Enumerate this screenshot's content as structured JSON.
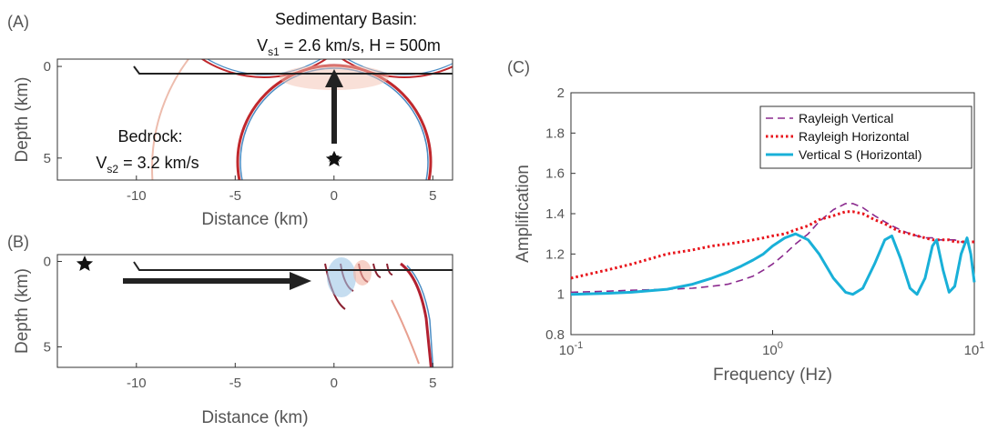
{
  "chart_data": [
    {
      "type": "image",
      "panel_label": "(A)",
      "xlabel": "Distance (km)",
      "ylabel": "Depth (km)",
      "xlim": [
        -14,
        6
      ],
      "ylim": [
        -0.4,
        6.2
      ],
      "y_inverted": true,
      "xticks": [
        -10,
        -5,
        0,
        5
      ],
      "yticks": [
        0,
        5
      ],
      "annotations": {
        "basin_title": "Sedimentary Basin:",
        "basin_v": "V",
        "basin_sub": "s1",
        "basin_rest": " = 2.6 km/s, H = 500m",
        "bedrock_title": "Bedrock:",
        "bedrock_v": "V",
        "bedrock_sub": "s2",
        "bedrock_rest": " = 3.2 km/s"
      }
    },
    {
      "type": "image",
      "panel_label": "(B)",
      "xlabel": "Distance (km)",
      "ylabel": "Depth (km)",
      "xlim": [
        -14,
        6
      ],
      "ylim": [
        -0.4,
        6.2
      ],
      "y_inverted": true,
      "xticks": [
        -10,
        -5,
        0,
        5
      ],
      "yticks": [
        0,
        5
      ]
    },
    {
      "type": "line",
      "panel_label": "(C)",
      "xlabel": "Frequency (Hz)",
      "ylabel": "Amplification",
      "xscale": "log",
      "xlim": [
        0.1,
        10
      ],
      "ylim": [
        0.8,
        2
      ],
      "xticks": [
        {
          "value": 0.1,
          "label": "10",
          "exponent": "-1"
        },
        {
          "value": 1,
          "label": "10",
          "exponent": "0"
        },
        {
          "value": 10,
          "label": "10",
          "exponent": "1"
        }
      ],
      "yticks": [
        0.8,
        1,
        1.2,
        1.4,
        1.6,
        1.8,
        2
      ],
      "legend": "upper right",
      "x": [
        0.1,
        0.15,
        0.2,
        0.3,
        0.4,
        0.5,
        0.6,
        0.7,
        0.8,
        0.9,
        1.0,
        1.15,
        1.3,
        1.5,
        1.7,
        2.0,
        2.3,
        2.5,
        2.8,
        3.2,
        3.6,
        3.9,
        4.3,
        4.8,
        5.2,
        5.7,
        6.2,
        6.5,
        7.0,
        7.5,
        8.0,
        8.6,
        9.2,
        9.6,
        10
      ],
      "series": [
        {
          "name": "Rayleigh Vertical",
          "color": "#8b2a8e",
          "linestyle": "dashed",
          "values": [
            1.01,
            1.015,
            1.02,
            1.025,
            1.03,
            1.04,
            1.05,
            1.07,
            1.09,
            1.12,
            1.15,
            1.2,
            1.25,
            1.3,
            1.36,
            1.42,
            1.45,
            1.45,
            1.43,
            1.39,
            1.36,
            1.34,
            1.32,
            1.3,
            1.29,
            1.28,
            1.28,
            1.27,
            1.27,
            1.27,
            1.27,
            1.26,
            1.26,
            1.26,
            1.26
          ]
        },
        {
          "name": "Rayleigh Horizontal",
          "color": "#e8141b",
          "linestyle": "dotted",
          "values": [
            1.08,
            1.12,
            1.15,
            1.2,
            1.22,
            1.24,
            1.25,
            1.26,
            1.27,
            1.28,
            1.29,
            1.3,
            1.32,
            1.34,
            1.37,
            1.39,
            1.41,
            1.41,
            1.4,
            1.37,
            1.35,
            1.33,
            1.31,
            1.3,
            1.29,
            1.28,
            1.27,
            1.27,
            1.27,
            1.27,
            1.26,
            1.26,
            1.26,
            1.26,
            1.26
          ]
        },
        {
          "name": "Vertical S (Horizontal)",
          "color": "#19b0d8",
          "linestyle": "solid",
          "values": [
            1.0,
            1.005,
            1.01,
            1.025,
            1.05,
            1.08,
            1.11,
            1.14,
            1.17,
            1.2,
            1.24,
            1.28,
            1.3,
            1.27,
            1.2,
            1.08,
            1.01,
            1.0,
            1.03,
            1.15,
            1.27,
            1.29,
            1.18,
            1.03,
            1.0,
            1.08,
            1.24,
            1.27,
            1.12,
            1.01,
            1.04,
            1.2,
            1.28,
            1.2,
            1.06
          ]
        }
      ]
    }
  ]
}
